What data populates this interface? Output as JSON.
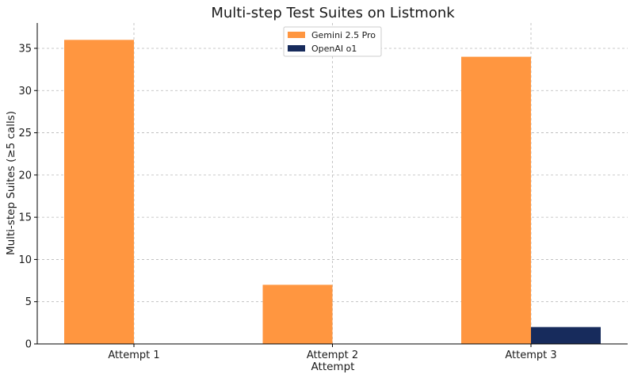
{
  "chart_data": {
    "type": "bar",
    "title": "Multi-step Test Suites on Listmonk",
    "xlabel": "Attempt",
    "ylabel": "Multi-step Suites (≥5 calls)",
    "categories": [
      "Attempt 1",
      "Attempt 2",
      "Attempt 3"
    ],
    "series": [
      {
        "name": "Gemini 2.5 Pro",
        "values": [
          36,
          7,
          34
        ],
        "color": "#FF9640"
      },
      {
        "name": "OpenAI o1",
        "values": [
          0,
          0,
          2
        ],
        "color": "#172B5C"
      }
    ],
    "ylim": [
      0,
      38
    ],
    "yticks": [
      0,
      5,
      10,
      15,
      20,
      25,
      30,
      35
    ],
    "grid": true,
    "legend_position": "top-center"
  }
}
